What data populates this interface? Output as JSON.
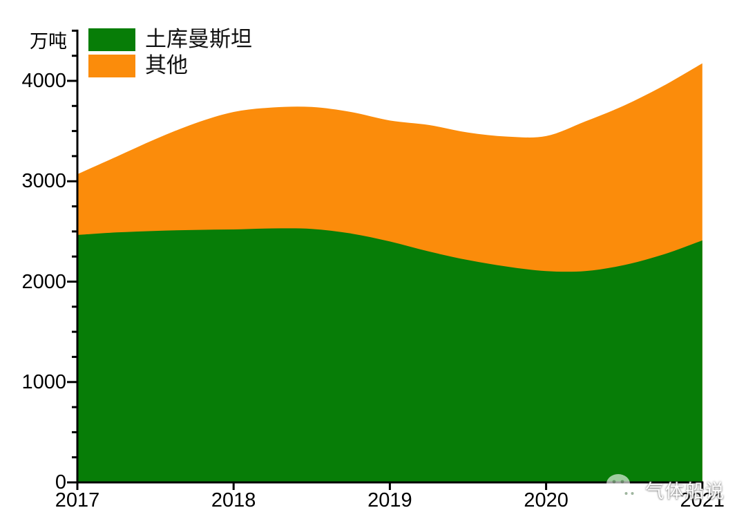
{
  "chart_data": {
    "type": "area",
    "stacked": true,
    "title": "",
    "unit_label": "万吨",
    "background": "#FFFFFF",
    "axis_color": "#000000",
    "grid": false,
    "legend_position": "top-left",
    "categories": [
      2017,
      2018,
      2019,
      2020,
      2021
    ],
    "series": [
      {
        "name": "土库曼斯坦",
        "color": "#077D07",
        "values": [
          2465,
          2520,
          2400,
          2105,
          2410
        ]
      },
      {
        "name": "其他",
        "color": "#FB8C0B",
        "values": [
          605,
          1170,
          1205,
          1345,
          1765
        ]
      }
    ],
    "stacked_totals": [
      3070,
      3690,
      3605,
      3450,
      4175
    ],
    "smooth_profile": {
      "x": [
        2017,
        2017.25,
        2017.5,
        2017.75,
        2018,
        2018.25,
        2018.5,
        2018.75,
        2019,
        2019.25,
        2019.5,
        2019.75,
        2020,
        2020.25,
        2020.5,
        2020.75,
        2021
      ],
      "series1_top": [
        2465,
        2490,
        2505,
        2515,
        2520,
        2530,
        2525,
        2480,
        2400,
        2300,
        2215,
        2150,
        2105,
        2105,
        2165,
        2270,
        2410
      ],
      "stack_top": [
        3070,
        3245,
        3420,
        3575,
        3690,
        3735,
        3740,
        3690,
        3605,
        3560,
        3485,
        3445,
        3450,
        3595,
        3755,
        3950,
        4175
      ]
    },
    "y_axis": {
      "min": 0,
      "max": 4500,
      "major_ticks": [
        0,
        1000,
        2000,
        3000,
        4000
      ],
      "major_tick_labels": [
        "0",
        "1000",
        "2000",
        "3000",
        "4000"
      ],
      "minor_tick_step": 250
    },
    "x_axis": {
      "tick_values": [
        2017,
        2018,
        2019,
        2020,
        2021
      ],
      "tick_labels": [
        "2017",
        "2018",
        "2019",
        "2020",
        "2021"
      ]
    }
  },
  "watermark": {
    "text": "气体船说",
    "icon": "wechat-icon"
  }
}
